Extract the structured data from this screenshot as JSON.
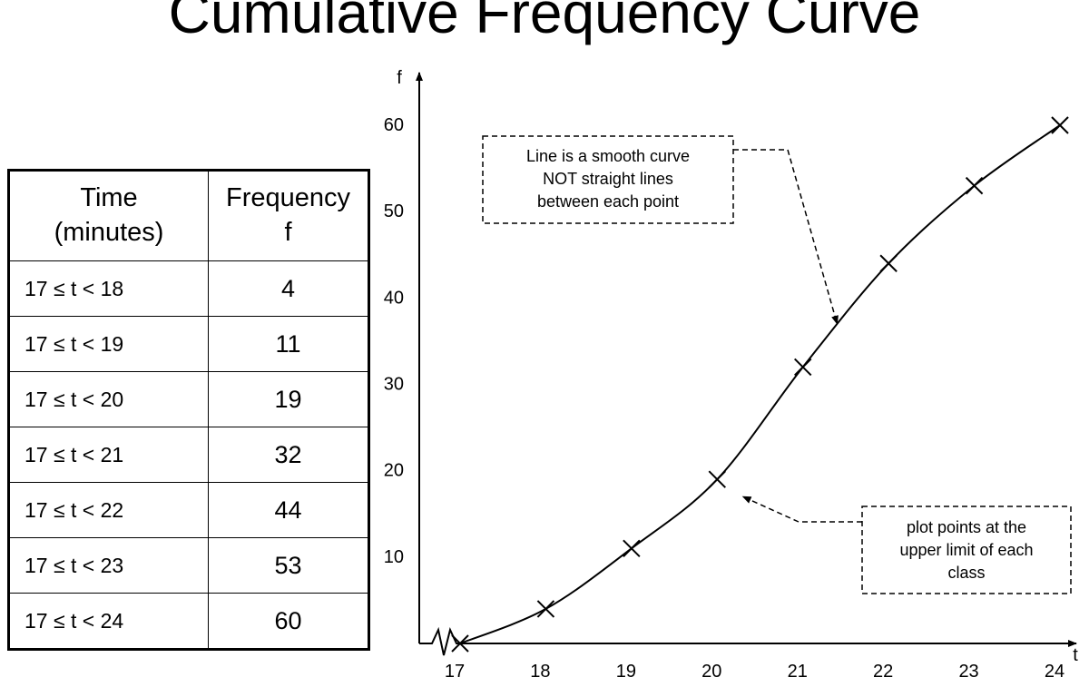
{
  "title": "Cumulative Frequency Curve",
  "table": {
    "header": {
      "col1": [
        "Time",
        "(minutes)"
      ],
      "col2": [
        "Frequency",
        "f"
      ]
    },
    "rows": [
      {
        "interval": "17 ≤ t < 18",
        "frequency": "4"
      },
      {
        "interval": "17 ≤ t < 19",
        "frequency": "11"
      },
      {
        "interval": "17 ≤ t < 20",
        "frequency": "19"
      },
      {
        "interval": "17 ≤ t < 21",
        "frequency": "32"
      },
      {
        "interval": "17 ≤ t < 22",
        "frequency": "44"
      },
      {
        "interval": "17 ≤ t < 23",
        "frequency": "53"
      },
      {
        "interval": "17 ≤ t < 24",
        "frequency": "60"
      }
    ]
  },
  "chart_data": {
    "type": "line",
    "title": "Cumulative Frequency Curve",
    "xlabel": "t",
    "ylabel": "f",
    "x": [
      17,
      18,
      19,
      20,
      21,
      22,
      23,
      24
    ],
    "series": [
      {
        "values": [
          0,
          4,
          11,
          19,
          32,
          44,
          53,
          60
        ]
      }
    ],
    "xlim": [
      17,
      24
    ],
    "ylim": [
      0,
      60
    ],
    "x_ticks": [
      "17",
      "18",
      "19",
      "20",
      "21",
      "22",
      "23",
      "24"
    ],
    "y_ticks": [
      "10",
      "20",
      "30",
      "40",
      "50",
      "60"
    ],
    "grid": false,
    "axis_break": "x",
    "marker": "x",
    "smooth": true,
    "annotations": [
      {
        "lines": [
          "Line is a smooth curve",
          "NOT straight lines",
          "between each point"
        ],
        "points_to": {
          "x": 21.4,
          "y": 37
        }
      },
      {
        "lines": [
          "plot points at the",
          "upper limit of each",
          "class"
        ],
        "points_to": {
          "x": 20.3,
          "y": 17
        }
      }
    ]
  }
}
